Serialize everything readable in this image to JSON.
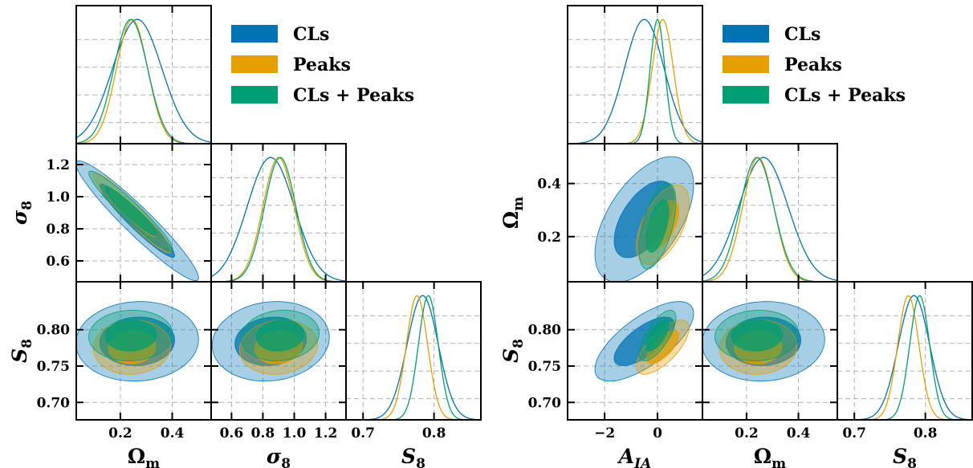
{
  "colors": {
    "CLs": "#0072b2",
    "Peaks": "#e69f00",
    "CLs + Peaks": "#009e73"
  },
  "chart_data": [
    {
      "type": "corner",
      "params": [
        {
          "id": "Om",
          "label": "Ω",
          "sub": "m",
          "range": [
            0.03,
            0.55
          ],
          "ticks": [
            0.2,
            0.4
          ],
          "tick_labels": [
            "0.2",
            "0.4"
          ]
        },
        {
          "id": "s8",
          "label": "σ",
          "sub": "8",
          "range": [
            0.47,
            1.33
          ],
          "ticks": [
            0.6,
            0.8,
            1.0,
            1.2
          ],
          "tick_labels": [
            "0.6",
            "0.8",
            "1.0",
            "1.2"
          ]
        },
        {
          "id": "S8",
          "label": "S",
          "sub": "8",
          "range": [
            0.676,
            0.866
          ],
          "ticks": [
            0.7,
            0.75,
            0.8
          ],
          "tick_labels": [
            "0.70",
            "0.75",
            "0.80"
          ],
          "x_tick_labels": [
            "0.7",
            "0.8"
          ],
          "x_ticks": [
            0.7,
            0.8
          ]
        }
      ],
      "legend": [
        "CLs",
        "Peaks",
        "CLs + Peaks"
      ],
      "legend_position": "top-right",
      "grid": true,
      "series": [
        {
          "name": "CLs",
          "mean": {
            "Om": 0.265,
            "s8": 0.85,
            "S8": 0.784
          },
          "sd": {
            "Om": 0.095,
            "s8": 0.15,
            "S8": 0.022
          }
        },
        {
          "name": "Peaks",
          "mean": {
            "Om": 0.245,
            "s8": 0.9,
            "S8": 0.776
          },
          "sd": {
            "Om": 0.06,
            "s8": 0.1,
            "S8": 0.015
          }
        },
        {
          "name": "CLs + Peaks",
          "mean": {
            "Om": 0.24,
            "s8": 0.91,
            "S8": 0.792
          },
          "sd": {
            "Om": 0.065,
            "s8": 0.1,
            "S8": 0.014
          }
        }
      ]
    },
    {
      "type": "corner",
      "params": [
        {
          "id": "AIA",
          "label": "A",
          "sub": "IA",
          "range": [
            -3.4,
            1.7
          ],
          "ticks": [
            -2,
            0
          ],
          "tick_labels": [
            "−2",
            "0"
          ]
        },
        {
          "id": "Om",
          "label": "Ω",
          "sub": "m",
          "range": [
            0.03,
            0.55
          ],
          "ticks": [
            0.2,
            0.4
          ],
          "tick_labels": [
            "0.2",
            "0.4"
          ]
        },
        {
          "id": "S8",
          "label": "S",
          "sub": "8",
          "range": [
            0.676,
            0.866
          ],
          "ticks": [
            0.7,
            0.75,
            0.8
          ],
          "tick_labels": [
            "0.70",
            "0.75",
            "0.80"
          ],
          "x_tick_labels": [
            "0.7",
            "0.8"
          ],
          "x_ticks": [
            0.7,
            0.8
          ]
        }
      ],
      "legend": [
        "CLs",
        "Peaks",
        "CLs + Peaks"
      ],
      "legend_position": "top-right",
      "grid": true,
      "series": [
        {
          "name": "CLs",
          "mean": {
            "AIA": -0.5,
            "Om": 0.265,
            "S8": 0.784
          },
          "sd": {
            "AIA": 0.75,
            "Om": 0.095,
            "S8": 0.022
          }
        },
        {
          "name": "Peaks",
          "mean": {
            "AIA": 0.2,
            "Om": 0.245,
            "S8": 0.776
          },
          "sd": {
            "AIA": 0.4,
            "Om": 0.06,
            "S8": 0.015
          }
        },
        {
          "name": "CLs + Peaks",
          "mean": {
            "AIA": 0.0,
            "Om": 0.24,
            "S8": 0.792
          },
          "sd": {
            "AIA": 0.28,
            "Om": 0.065,
            "S8": 0.014
          }
        }
      ]
    }
  ]
}
